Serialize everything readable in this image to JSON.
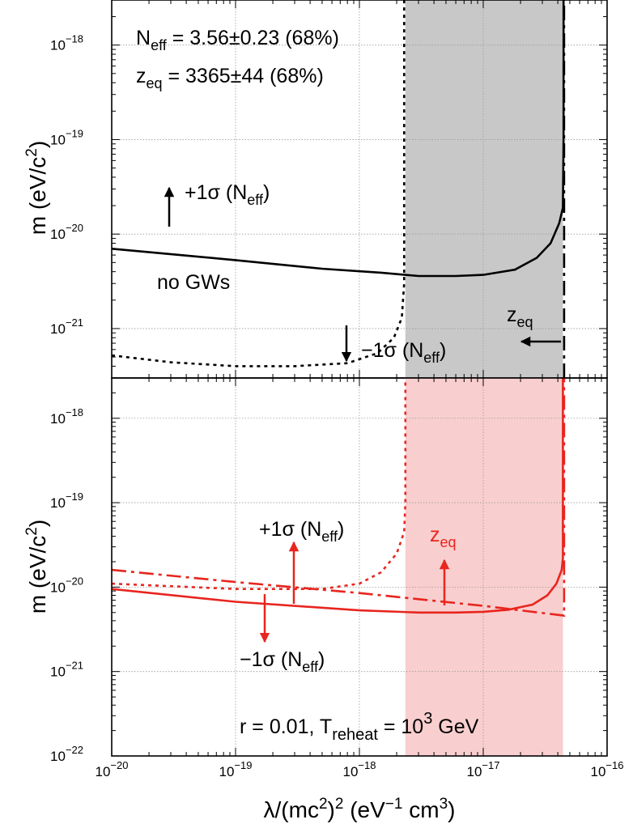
{
  "chart_data": [
    {
      "type": "line",
      "ylabel": "m (eV/c²)",
      "ylabel_parts": {
        "base": "m (eV/c",
        "sup": "2",
        "end": ")"
      },
      "xscale": "log",
      "yscale": "log",
      "xlim": [
        1e-20,
        1e-16
      ],
      "ylim": [
        3e-22,
        3e-18
      ],
      "grid": true,
      "y_ticks": [
        {
          "value": 1e-21,
          "base": "10",
          "exp": "−21"
        },
        {
          "value": 1e-20,
          "base": "10",
          "exp": "−20"
        },
        {
          "value": 1e-19,
          "base": "10",
          "exp": "−19"
        },
        {
          "value": 1e-18,
          "base": "10",
          "exp": "−18"
        }
      ],
      "annotations": {
        "neff": {
          "pre": "N",
          "sub": "eff",
          "post": " = 3.56±0.23 (68%)"
        },
        "zeq": {
          "pre": "z",
          "sub": "eq",
          "post": " = 3365±44 (68%)"
        },
        "plus_sigma": {
          "pre": "+1σ (N",
          "sub": "eff",
          "post": ")"
        },
        "minus_sigma": {
          "pre": "−1σ (N",
          "sub": "eff",
          "post": ")"
        },
        "no_gws": "no GWs",
        "zeq_label": {
          "pre": "z",
          "sub": "eq"
        }
      },
      "series": [
        {
          "style": "solid",
          "color": "#000000",
          "x": [
            1e-20,
            1e-19,
            5e-19,
            1.5e-18,
            3e-18,
            6e-18,
            1e-17,
            1.8e-17,
            2.7e-17,
            3.5e-17,
            4.1e-17,
            4.4e-17,
            4.45e-17,
            4.45e-17
          ],
          "y": [
            7e-21,
            5.3e-21,
            4.3e-21,
            3.9e-21,
            3.6e-21,
            3.6e-21,
            3.7e-21,
            4.2e-21,
            5.6e-21,
            8e-21,
            1.3e-20,
            1.9e-20,
            1e-19,
            3e-18
          ]
        },
        {
          "style": "dotted",
          "color": "#000000",
          "x": [
            1e-20,
            3e-20,
            1e-19,
            3e-19,
            8e-19,
            1.4e-18,
            1.9e-18,
            2.2e-18,
            2.3e-18,
            2.3e-18,
            2.3e-18
          ],
          "y": [
            5.2e-22,
            4.4e-22,
            4e-22,
            4e-22,
            4.3e-22,
            5.5e-22,
            8e-22,
            1.3e-21,
            3e-21,
            1e-20,
            3e-18
          ]
        },
        {
          "style": "dashdot",
          "color": "#000000",
          "x": [
            4.5e-17,
            4.5e-17
          ],
          "y": [
            3e-22,
            3e-18
          ]
        }
      ],
      "shaded_region": {
        "color": "#c8c8c8",
        "x": [
          2.35e-18,
          4.4e-17
        ]
      }
    },
    {
      "type": "line",
      "xlabel": "λ/(mc²)² (eV⁻¹ cm³)",
      "xlabel_parts": {
        "pre": "λ/(mc",
        "sup1": "2",
        "mid": ")",
        "sup2": "2",
        "post": " (eV",
        "sup3": "−1",
        "post2": " cm",
        "sup4": "3",
        "end": ")"
      },
      "ylabel": "m (eV/c²)",
      "ylabel_parts": {
        "base": "m (eV/c",
        "sup": "2",
        "end": ")"
      },
      "xscale": "log",
      "yscale": "log",
      "xlim": [
        1e-20,
        1e-16
      ],
      "ylim": [
        1e-22,
        3e-18
      ],
      "grid": true,
      "x_ticks": [
        {
          "value": 1e-20,
          "base": "10",
          "exp": "−20"
        },
        {
          "value": 1e-19,
          "base": "10",
          "exp": "−19"
        },
        {
          "value": 1e-18,
          "base": "10",
          "exp": "−18"
        },
        {
          "value": 1e-17,
          "base": "10",
          "exp": "−17"
        },
        {
          "value": 1e-16,
          "base": "10",
          "exp": "−16"
        }
      ],
      "y_ticks": [
        {
          "value": 1e-22,
          "base": "10",
          "exp": "−22"
        },
        {
          "value": 1e-21,
          "base": "10",
          "exp": "−21"
        },
        {
          "value": 1e-20,
          "base": "10",
          "exp": "−20"
        },
        {
          "value": 1e-19,
          "base": "10",
          "exp": "−19"
        },
        {
          "value": 1e-18,
          "base": "10",
          "exp": "−18"
        }
      ],
      "annotations": {
        "plus_sigma": {
          "pre": "+1σ (N",
          "sub": "eff",
          "post": ")"
        },
        "minus_sigma": {
          "pre": "−1σ (N",
          "sub": "eff",
          "post": ")"
        },
        "zeq_label": {
          "pre": "z",
          "sub": "eq"
        },
        "reheat": {
          "pre": "r = 0.01, T",
          "sub": "reheat",
          "mid": " = 10",
          "sup": "3",
          "post": " GeV"
        }
      },
      "series": [
        {
          "style": "solid",
          "color": "#e8251f",
          "x": [
            1e-20,
            1e-19,
            1e-18,
            3e-18,
            6e-18,
            1e-17,
            1.6e-17,
            2.5e-17,
            3.3e-17,
            3.9e-17,
            4.3e-17,
            4.4e-17,
            4.4e-17
          ],
          "y": [
            9.5e-21,
            6.7e-21,
            5.3e-21,
            5e-21,
            5e-21,
            5.1e-21,
            5.4e-21,
            6.2e-21,
            8e-21,
            1.1e-20,
            1.6e-20,
            2.2e-20,
            3e-18
          ]
        },
        {
          "style": "dotted",
          "color": "#e8251f",
          "x": [
            1e-20,
            1e-19,
            5e-19,
            1e-18,
            1.5e-18,
            2e-18,
            2.3e-18,
            2.35e-18,
            2.35e-18
          ],
          "y": [
            1.1e-20,
            9.5e-21,
            9.5e-21,
            1.1e-20,
            1.5e-20,
            2.5e-20,
            4.5e-20,
            1e-19,
            3e-18
          ]
        },
        {
          "style": "dashdot",
          "color": "#e8251f",
          "x": [
            1e-20,
            1e-19,
            1e-18,
            1e-17,
            4.5e-17,
            4.5e-17
          ],
          "y": [
            1.6e-20,
            1.15e-20,
            8.5e-21,
            6e-21,
            4.6e-21,
            3e-18
          ]
        }
      ],
      "shaded_region": {
        "color": "#f9cece",
        "x": [
          2.35e-18,
          4.4e-17
        ]
      }
    }
  ]
}
